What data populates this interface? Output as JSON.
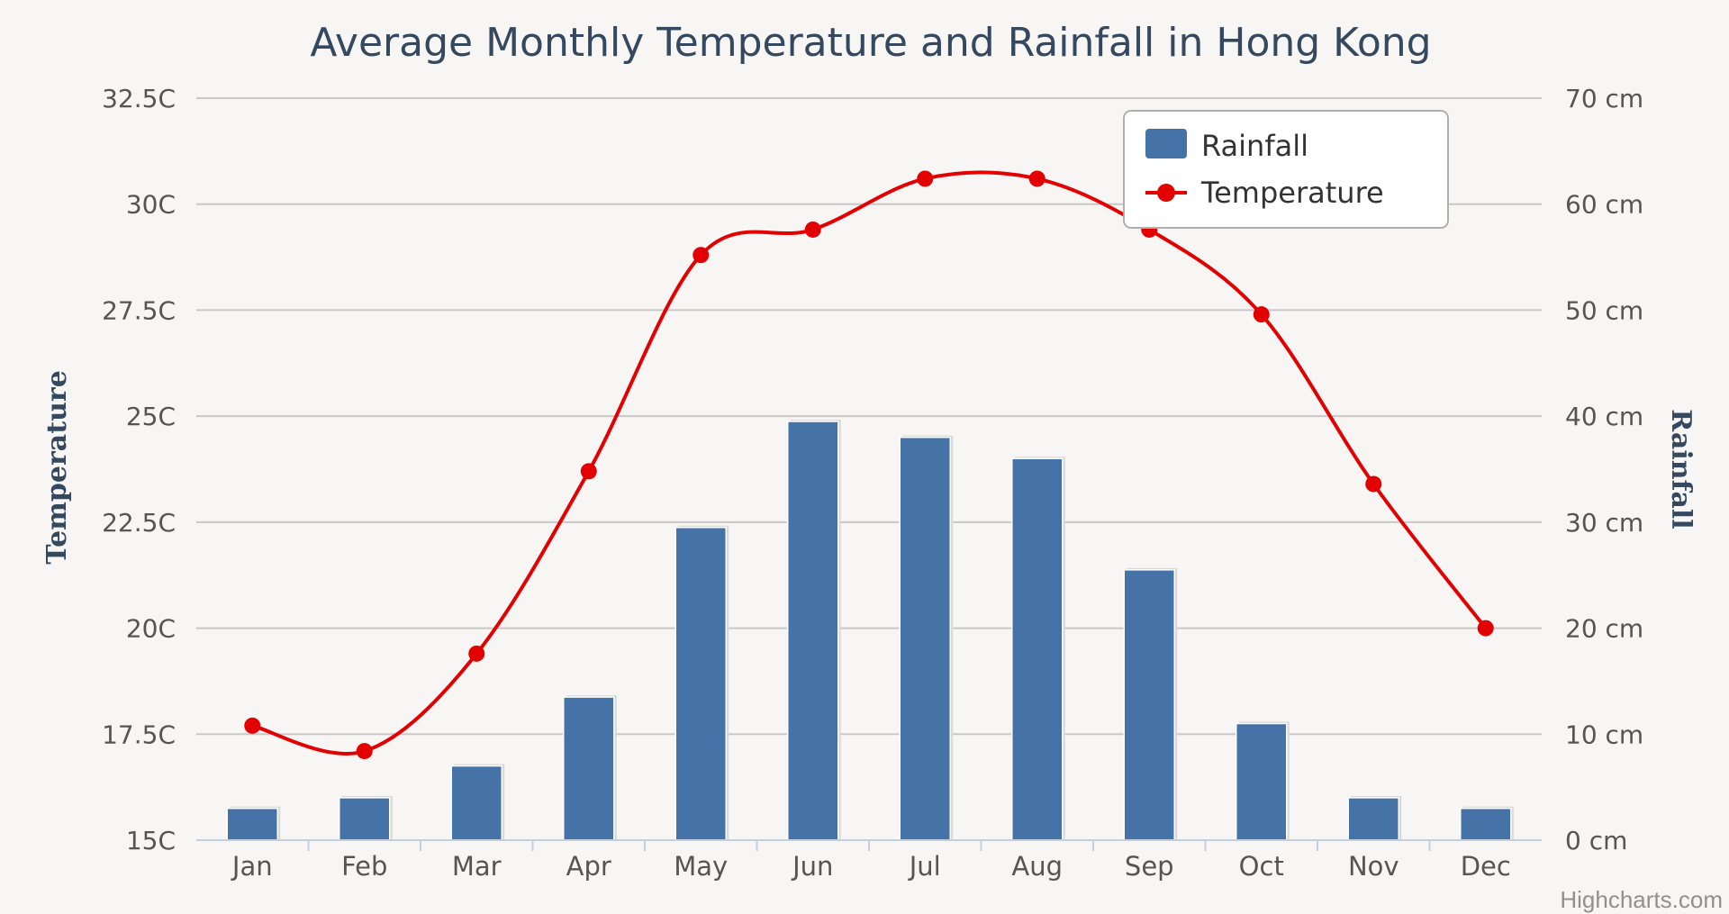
{
  "chart_data": {
    "type": "bar",
    "title": "Average Monthly Temperature and Rainfall in Hong Kong",
    "categories": [
      "Jan",
      "Feb",
      "Mar",
      "Apr",
      "May",
      "Jun",
      "Jul",
      "Aug",
      "Sep",
      "Oct",
      "Nov",
      "Dec"
    ],
    "series": [
      {
        "name": "Rainfall",
        "type": "bar",
        "axis": "right",
        "color": "#4572a7",
        "values": [
          3,
          4,
          7,
          13.5,
          29.5,
          39.5,
          38,
          36,
          25.5,
          11,
          4,
          3
        ]
      },
      {
        "name": "Temperature",
        "type": "line",
        "axis": "left",
        "color": "#e30000",
        "values": [
          17.7,
          17.1,
          19.4,
          23.7,
          28.8,
          29.4,
          30.6,
          30.6,
          29.4,
          27.4,
          23.4,
          20
        ]
      }
    ],
    "y_left": {
      "label": "Temperature",
      "range": [
        15,
        32.5
      ],
      "ticks": [
        15,
        17.5,
        20,
        22.5,
        25,
        27.5,
        30,
        32.5
      ],
      "tick_labels": [
        "15C",
        "17.5C",
        "20C",
        "22.5C",
        "25C",
        "27.5C",
        "30C",
        "32.5C"
      ]
    },
    "y_right": {
      "label": "Rainfall",
      "range": [
        0,
        70
      ],
      "ticks": [
        0,
        10,
        20,
        30,
        40,
        50,
        60,
        70
      ],
      "tick_labels": [
        "0 cm",
        "10 cm",
        "20 cm",
        "30 cm",
        "40 cm",
        "50 cm",
        "60 cm",
        "70 cm"
      ]
    },
    "grid": true,
    "legend": "top-right"
  },
  "credits": "Highcharts.com",
  "colors": {
    "background": "#f7f6f5",
    "grid": "#c8c8c8",
    "bar": "#4572a7",
    "line": "#e30000",
    "title": "#34485f"
  }
}
